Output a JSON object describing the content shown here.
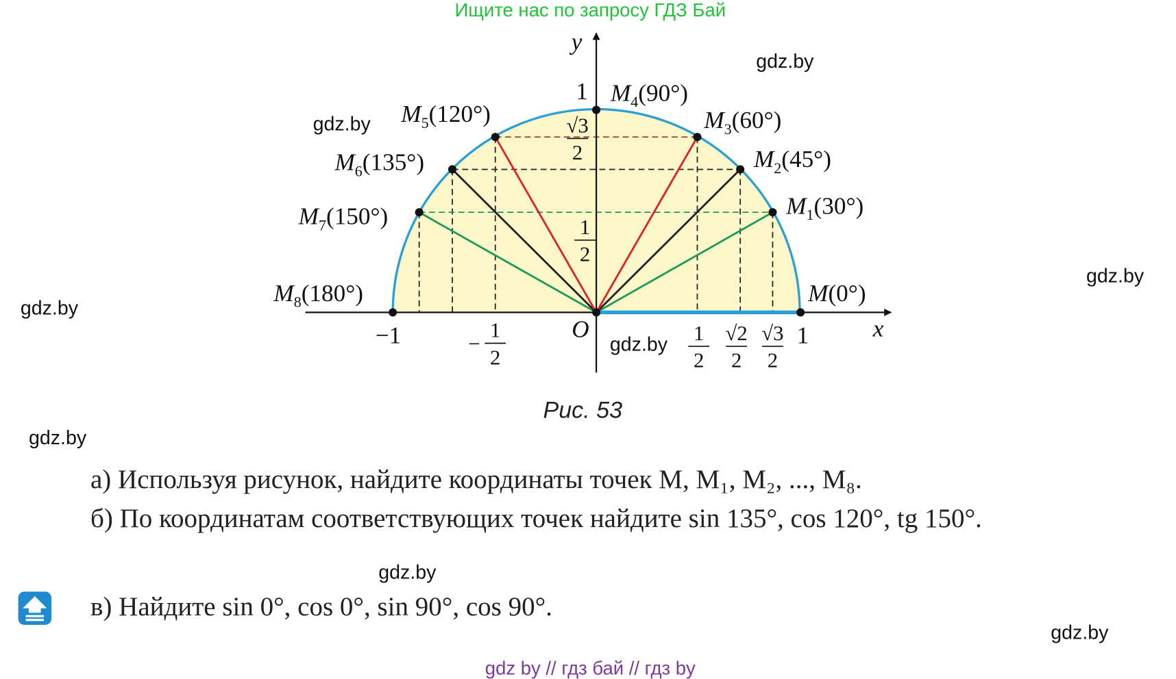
{
  "header": {
    "search_hint": "Ищите нас по запросу ГДЗ Бай"
  },
  "watermarks": [
    "gdz.by",
    "gdz.by",
    "gdz.by",
    "gdz.by",
    "gdz.by",
    "gdz.by",
    "gdz.by",
    "gdz.by"
  ],
  "figure": {
    "points": [
      {
        "name": "M",
        "angle": "(0°)"
      },
      {
        "name": "M",
        "sub": "1",
        "angle": "(30°)"
      },
      {
        "name": "M",
        "sub": "2",
        "angle": "(45°)"
      },
      {
        "name": "M",
        "sub": "3",
        "angle": "(60°)"
      },
      {
        "name": "M",
        "sub": "4",
        "angle": "(90°)"
      },
      {
        "name": "M",
        "sub": "5",
        "angle": "(120°)"
      },
      {
        "name": "M",
        "sub": "6",
        "angle": "(135°)"
      },
      {
        "name": "M",
        "sub": "7",
        "angle": "(150°)"
      },
      {
        "name": "M",
        "sub": "8",
        "angle": "(180°)"
      }
    ],
    "x_axis": {
      "label": "x",
      "origin": "O",
      "minus_one": "−1",
      "one": "1",
      "minus_half": {
        "sign": "−",
        "num": "1",
        "den": "2"
      },
      "half": {
        "num": "1",
        "den": "2"
      },
      "sqrt2_half": {
        "num": "√2",
        "den": "2"
      },
      "sqrt3_half": {
        "num": "√3",
        "den": "2"
      }
    },
    "y_axis": {
      "label": "y",
      "one": "1",
      "sqrt3_half": {
        "num": "√3",
        "den": "2"
      },
      "half": {
        "num": "1",
        "den": "2"
      }
    },
    "caption": "Рис. 53"
  },
  "tasks": [
    "а) Используя рисунок, найдите координаты точек M, M₁, M₂, ..., M₈.",
    "б) По координатам соответствующих точек найдите sin 135°, cos 120°, tg 150°.",
    "в) Найдите sin 0°, cos 0°, sin 90°, cos 90°."
  ],
  "footer": "gdz by  //  гдз бай  //  гдз by"
}
